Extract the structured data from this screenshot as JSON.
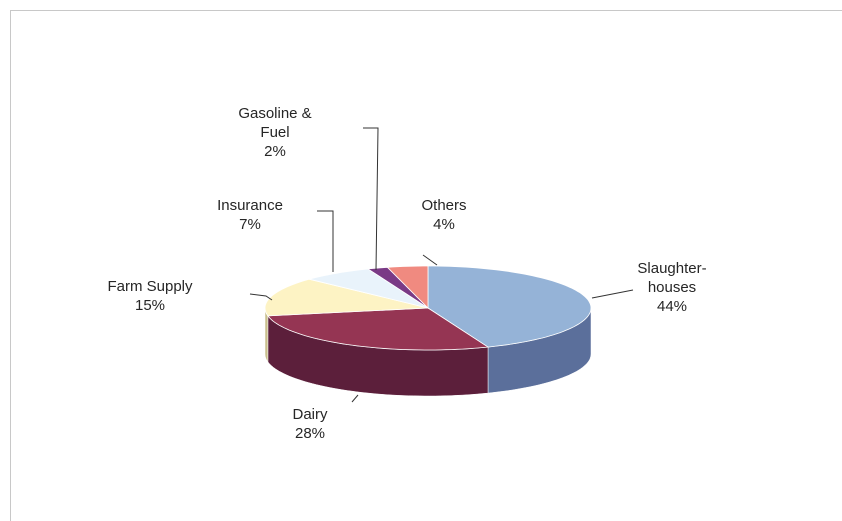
{
  "chart_data": {
    "type": "pie",
    "categories": [
      "Slaughter-houses",
      "Dairy",
      "Farm Supply",
      "Insurance",
      "Gasoline & Fuel",
      "Others"
    ],
    "values": [
      44,
      28,
      15,
      7,
      2,
      4
    ],
    "value_labels": [
      "44%",
      "28%",
      "15%",
      "7%",
      "2%",
      "4%"
    ],
    "colors": [
      "#95b3d7",
      "#953553",
      "#fdf3c4",
      "#e9f3fb",
      "#7a3a86",
      "#f08a80"
    ],
    "side_colors": [
      "#5b6f9b",
      "#5c1f3b",
      "#c9bf8c",
      "#b0bac4",
      "#4c2255",
      "#b0564e"
    ]
  }
}
